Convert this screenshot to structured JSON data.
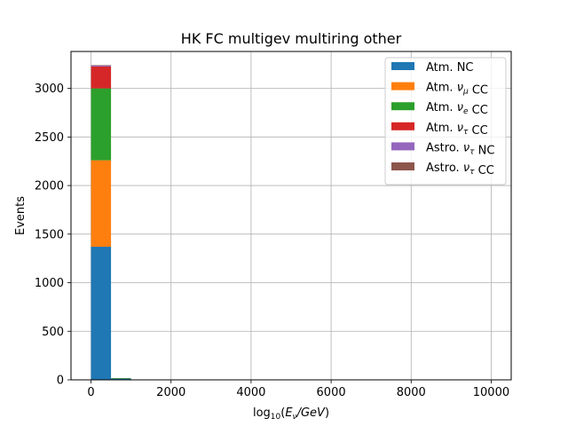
{
  "chart_data": {
    "type": "bar",
    "stacked": true,
    "title": "HK FC multigev multiring other",
    "xlabel": "log$_{10}$($E_\\nu$/GeV)",
    "ylabel": "Events",
    "xlim": [
      -500,
      10500
    ],
    "ylim": [
      0,
      3380
    ],
    "xticks": [
      0,
      2000,
      4000,
      6000,
      8000,
      10000
    ],
    "xtick_labels": [
      "0",
      "2000",
      "4000",
      "6000",
      "8000",
      "10000"
    ],
    "yticks": [
      0,
      500,
      1000,
      1500,
      2000,
      2500,
      3000
    ],
    "ytick_labels": [
      "0",
      "500",
      "1000",
      "1500",
      "2000",
      "2500",
      "3000"
    ],
    "grid": true,
    "legend_position": "top-right",
    "bin_edges": [
      0,
      500,
      1000,
      1500,
      2000,
      2500,
      3000,
      3500,
      4000,
      4500,
      5000,
      5500,
      6000,
      6500,
      7000,
      7500,
      8000,
      8500,
      9000,
      9500,
      10000
    ],
    "series": [
      {
        "name": "Atm. NC",
        "color": "#1f77b4",
        "values": [
          1370,
          15,
          0,
          0,
          0,
          0,
          0,
          0,
          0,
          0,
          0,
          0,
          0,
          0,
          0,
          0,
          0,
          0,
          0,
          0
        ]
      },
      {
        "name": "Atm. ν_μ CC",
        "color": "#ff7f0e",
        "values": [
          890,
          2,
          0,
          0,
          0,
          0,
          0,
          0,
          0,
          0,
          0,
          0,
          0,
          0,
          0,
          0,
          0,
          0,
          0,
          0
        ]
      },
      {
        "name": "Atm. ν_e CC",
        "color": "#2ca02c",
        "values": [
          740,
          1,
          0,
          0,
          0,
          0,
          0,
          0,
          0,
          0,
          0,
          0,
          0,
          0,
          0,
          0,
          0,
          0,
          0,
          0
        ]
      },
      {
        "name": "Atm. ν_τ CC",
        "color": "#d62728",
        "values": [
          225,
          0,
          0,
          0,
          0,
          0,
          0,
          0,
          0,
          0,
          0,
          0,
          0,
          0,
          0,
          0,
          0,
          0,
          0,
          0
        ]
      },
      {
        "name": "Astro. ν_τ NC",
        "color": "#9467bd",
        "values": [
          10,
          0,
          0,
          0,
          0,
          0,
          0,
          0,
          0,
          0,
          0,
          0,
          0,
          0,
          0,
          0,
          0,
          0,
          0,
          0
        ]
      },
      {
        "name": "Astro. ν_τ CC",
        "color": "#8c564b",
        "values": [
          5,
          0,
          0,
          0,
          0,
          0,
          0,
          0,
          0,
          0,
          0,
          0,
          0,
          0,
          0,
          0,
          0,
          0,
          0,
          0
        ]
      }
    ]
  }
}
